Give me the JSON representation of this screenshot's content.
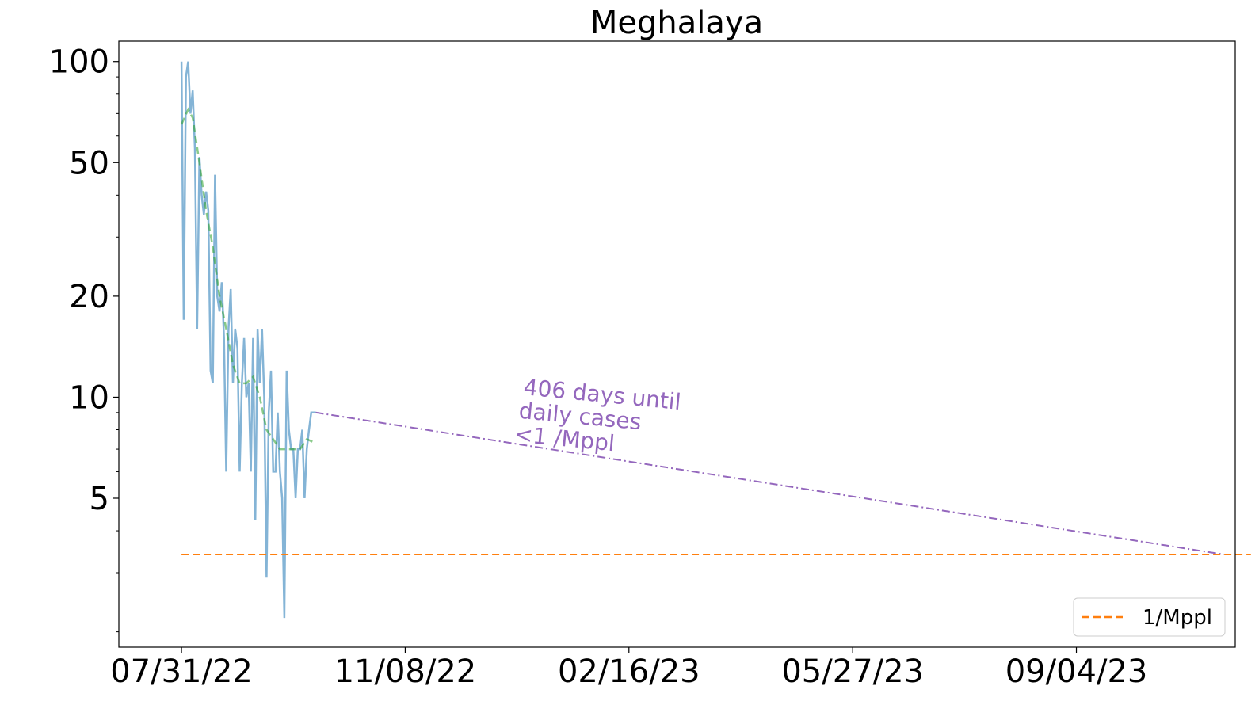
{
  "chart_data": {
    "type": "line",
    "title": "Meghalaya",
    "xlabel": "",
    "ylabel": "",
    "y_scale": "log",
    "ylim": [
      1.8,
      115
    ],
    "xlim": [
      "2022-07-03",
      "2023-11-14"
    ],
    "x_ticks": [
      "2022-07-31",
      "2022-11-08",
      "2023-02-16",
      "2023-05-27",
      "2023-09-04"
    ],
    "x_tick_labels": [
      "07/31/22",
      "11/08/22",
      "02/16/23",
      "05/27/23",
      "09/04/23"
    ],
    "y_ticks": [
      5,
      10,
      20,
      50,
      100
    ],
    "y_tick_labels": [
      "5",
      "10",
      "20",
      "50",
      "100"
    ],
    "grid": false,
    "legend": {
      "position": "lower-right",
      "entries": [
        "1/Mppl"
      ]
    },
    "annotation": {
      "lines": [
        "406 days until",
        "daily cases",
        "<1 /Mppl"
      ],
      "color": "#9467bd"
    },
    "series": [
      {
        "color": "#1f77b4",
        "style": "solid",
        "x": [
          "2022-07-31",
          "2022-08-01",
          "2022-08-02",
          "2022-08-03",
          "2022-08-04",
          "2022-08-05",
          "2022-08-06",
          "2022-08-07",
          "2022-08-08",
          "2022-08-09",
          "2022-08-10",
          "2022-08-11",
          "2022-08-12",
          "2022-08-13",
          "2022-08-14",
          "2022-08-15",
          "2022-08-16",
          "2022-08-17",
          "2022-08-18",
          "2022-08-19",
          "2022-08-20",
          "2022-08-21",
          "2022-08-22",
          "2022-08-23",
          "2022-08-24",
          "2022-08-25",
          "2022-08-26",
          "2022-08-27",
          "2022-08-28",
          "2022-08-29",
          "2022-08-30",
          "2022-08-31",
          "2022-09-01",
          "2022-09-02",
          "2022-09-03",
          "2022-09-04",
          "2022-09-05",
          "2022-09-06",
          "2022-09-07",
          "2022-09-08",
          "2022-09-09",
          "2022-09-10",
          "2022-09-11",
          "2022-09-12",
          "2022-09-13",
          "2022-09-14",
          "2022-09-15",
          "2022-09-16",
          "2022-09-17",
          "2022-09-18",
          "2022-09-19",
          "2022-09-20",
          "2022-09-21",
          "2022-09-22",
          "2022-09-23",
          "2022-09-24",
          "2022-09-25",
          "2022-09-26",
          "2022-09-27",
          "2022-09-28",
          "2022-09-29"
        ],
        "values": [
          100,
          17,
          90,
          100,
          70,
          82,
          55,
          16,
          52,
          40,
          35,
          41,
          36,
          12,
          11,
          46,
          20,
          18,
          22,
          15,
          6,
          16,
          21,
          11,
          16,
          14,
          6,
          11,
          15,
          10,
          11,
          6,
          15,
          4.3,
          16,
          11,
          16,
          10,
          2.9,
          9,
          12,
          6,
          6,
          9,
          6,
          5,
          2.2,
          12,
          8,
          7,
          7,
          5,
          7,
          7,
          8,
          5,
          7,
          8,
          9,
          9,
          9
        ]
      },
      {
        "color": "#2ca02c",
        "style": "dashed",
        "x": [
          "2022-07-31",
          "2022-08-03",
          "2022-08-05",
          "2022-08-08",
          "2022-08-11",
          "2022-08-14",
          "2022-08-17",
          "2022-08-20",
          "2022-08-23",
          "2022-08-26",
          "2022-08-29",
          "2022-09-01",
          "2022-09-04",
          "2022-09-07",
          "2022-09-10",
          "2022-09-13",
          "2022-09-16",
          "2022-09-19",
          "2022-09-22",
          "2022-09-25",
          "2022-09-29"
        ],
        "values": [
          65,
          72,
          68,
          50,
          36,
          28,
          20,
          16,
          12.5,
          11,
          11,
          11.5,
          10,
          8,
          7.5,
          7,
          7,
          7,
          7,
          7.5,
          7.3
        ]
      },
      {
        "color": "#9467bd",
        "style": "dashdot",
        "x": [
          "2022-09-29",
          "2023-11-09"
        ],
        "values": [
          9,
          3.4
        ]
      },
      {
        "name": "1/Mppl",
        "color": "#ff7f0e",
        "style": "dashed",
        "x": [
          "2022-07-31",
          "2023-11-21"
        ],
        "values": [
          3.4,
          3.4
        ]
      }
    ]
  }
}
